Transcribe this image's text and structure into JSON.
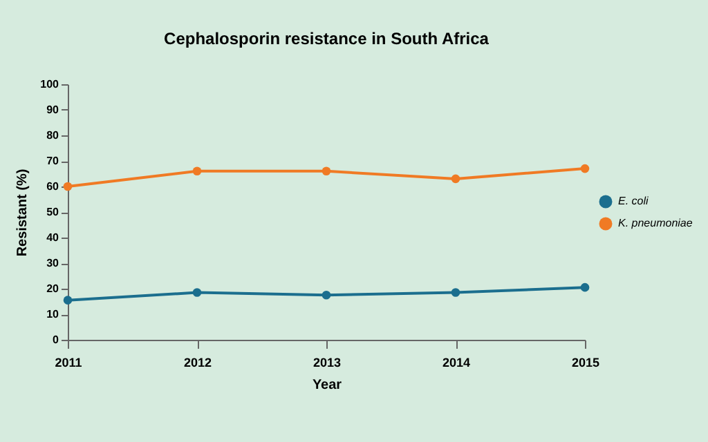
{
  "chart_data": {
    "type": "line",
    "title": "Cephalosporin resistance in South Africa",
    "xlabel": "Year",
    "ylabel": "Resistant (%)",
    "x": [
      2011,
      2012,
      2013,
      2014,
      2015
    ],
    "series": [
      {
        "name": "E. coli",
        "color": "#1b6e8e",
        "values": [
          15.5,
          18.5,
          17.5,
          18.5,
          20.5
        ]
      },
      {
        "name": "K. pneumoniae",
        "color": "#f07a24",
        "values": [
          60,
          66,
          66,
          63,
          67
        ]
      }
    ],
    "xlim": [
      2011,
      2015
    ],
    "xticks": [
      2011,
      2012,
      2013,
      2014,
      2015
    ],
    "ylim": [
      0,
      100
    ],
    "yticks": [
      0,
      10,
      20,
      30,
      40,
      50,
      60,
      70,
      80,
      90,
      100
    ],
    "grid": false,
    "legend": "right",
    "marker": "circle",
    "line_style": "solid"
  }
}
